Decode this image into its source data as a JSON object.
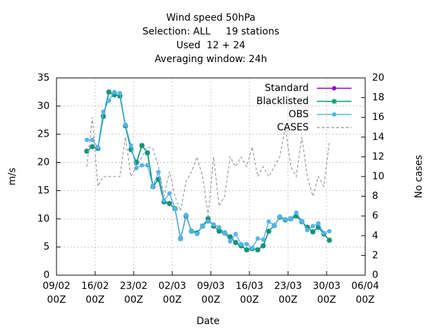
{
  "chart_data": {
    "type": "line",
    "title": [
      "Wind speed 50hPa",
      "Selection: ALL     19 stations",
      "Used  12 + 24",
      "Averaging window: 24h"
    ],
    "xlabel": "Date",
    "ylabel": "m/s",
    "y2label": "No cases",
    "x": [
      5.5,
      6.5,
      7.5,
      8.5,
      9.5,
      10.5,
      11.5,
      12.5,
      13.5,
      14.5,
      15.5,
      16.5,
      17.5,
      18.5,
      19.5,
      20.5,
      21.5,
      22.5,
      23.5,
      24.5,
      25.5,
      26.5,
      27.5,
      28.5,
      29.5,
      30.5,
      31.5,
      32.5,
      33.5,
      34.5,
      35.5,
      36.5,
      37.5,
      38.5,
      39.5,
      40.5,
      41.5,
      42.5,
      43.5,
      44.5,
      45.5,
      46.5,
      47.5,
      48.5,
      49.5
    ],
    "xlim": [
      0,
      56
    ],
    "xticks": [
      {
        "value": 0,
        "label": "09/02\n00Z"
      },
      {
        "value": 7,
        "label": "16/02\n00Z"
      },
      {
        "value": 14,
        "label": "23/02\n00Z"
      },
      {
        "value": 21,
        "label": "02/03\n00Z"
      },
      {
        "value": 28,
        "label": "09/03\n00Z"
      },
      {
        "value": 35,
        "label": "16/03\n00Z"
      },
      {
        "value": 42,
        "label": "23/03\n00Z"
      },
      {
        "value": 49,
        "label": "30/03\n00Z"
      },
      {
        "value": 56,
        "label": "06/04\n00Z"
      }
    ],
    "ylim": [
      0,
      35
    ],
    "yticks": [
      0,
      5,
      10,
      15,
      20,
      25,
      30,
      35
    ],
    "y2lim": [
      0,
      20
    ],
    "y2ticks": [
      0,
      2,
      4,
      6,
      8,
      10,
      12,
      14,
      16,
      18,
      20
    ],
    "grid": true,
    "legend": "top-right",
    "series": [
      {
        "name": "Standard",
        "color": "#9400d3",
        "marker": "circle",
        "values": [
          22,
          22.8,
          22.5,
          28.2,
          32.5,
          32,
          31.8,
          26.5,
          22.3,
          20,
          23,
          21.7,
          15.7,
          17,
          13,
          12.7,
          11.8,
          6.5,
          10.5,
          7.8,
          7.5,
          8.7,
          10,
          8.7,
          7.8,
          7.5,
          6.8,
          5.8,
          5.2,
          4.5,
          4.7,
          4.5,
          5.2,
          7.8,
          8.8,
          10.3,
          9.8,
          10,
          10.5,
          9.5,
          8.5,
          7.7,
          8.5,
          7.3,
          6.2
        ]
      },
      {
        "name": "Blacklisted",
        "color": "#009e73",
        "marker": "star",
        "values": [
          22,
          22.8,
          22.5,
          28.2,
          32.5,
          32,
          31.8,
          26.5,
          22.3,
          20,
          23,
          21.7,
          15.7,
          17,
          13,
          12.7,
          11.8,
          6.5,
          10.5,
          7.8,
          7.5,
          8.7,
          10,
          8.7,
          7.8,
          7.5,
          6.8,
          5.8,
          5.2,
          4.5,
          4.7,
          4.5,
          5.2,
          7.8,
          8.8,
          10.3,
          9.8,
          10,
          10.5,
          9.5,
          8.5,
          7.7,
          8.5,
          7.3,
          6.2
        ]
      },
      {
        "name": "OBS",
        "color": "#56b4e9",
        "marker": "circle",
        "values": [
          24,
          24,
          22.7,
          29,
          31,
          32.5,
          32.3,
          26.7,
          23,
          19,
          19.5,
          19.5,
          15.7,
          18.3,
          13.3,
          14.5,
          11.8,
          6.5,
          10.7,
          7.8,
          7.3,
          8.7,
          9.5,
          9,
          8.5,
          7.5,
          6,
          7.3,
          5.5,
          5.5,
          4.8,
          6.5,
          6.3,
          9.5,
          8.8,
          10.4,
          9.9,
          10,
          11.1,
          9.6,
          8,
          8.7,
          9.2,
          7.5,
          7.8
        ]
      },
      {
        "name": "CASES",
        "color": "#a0a0a0",
        "dashed": true,
        "axis": "y2",
        "values": [
          11,
          16,
          9,
          10,
          10,
          10,
          10,
          14,
          10,
          11,
          12,
          13,
          12.8,
          11,
          8,
          10.5,
          8,
          6.5,
          9.5,
          10.5,
          12,
          10,
          6,
          12,
          7,
          8,
          12,
          11,
          12,
          11,
          13,
          10,
          11,
          10,
          11,
          12,
          15,
          11,
          10,
          14,
          10,
          8,
          10,
          9,
          13.5
        ]
      }
    ]
  }
}
